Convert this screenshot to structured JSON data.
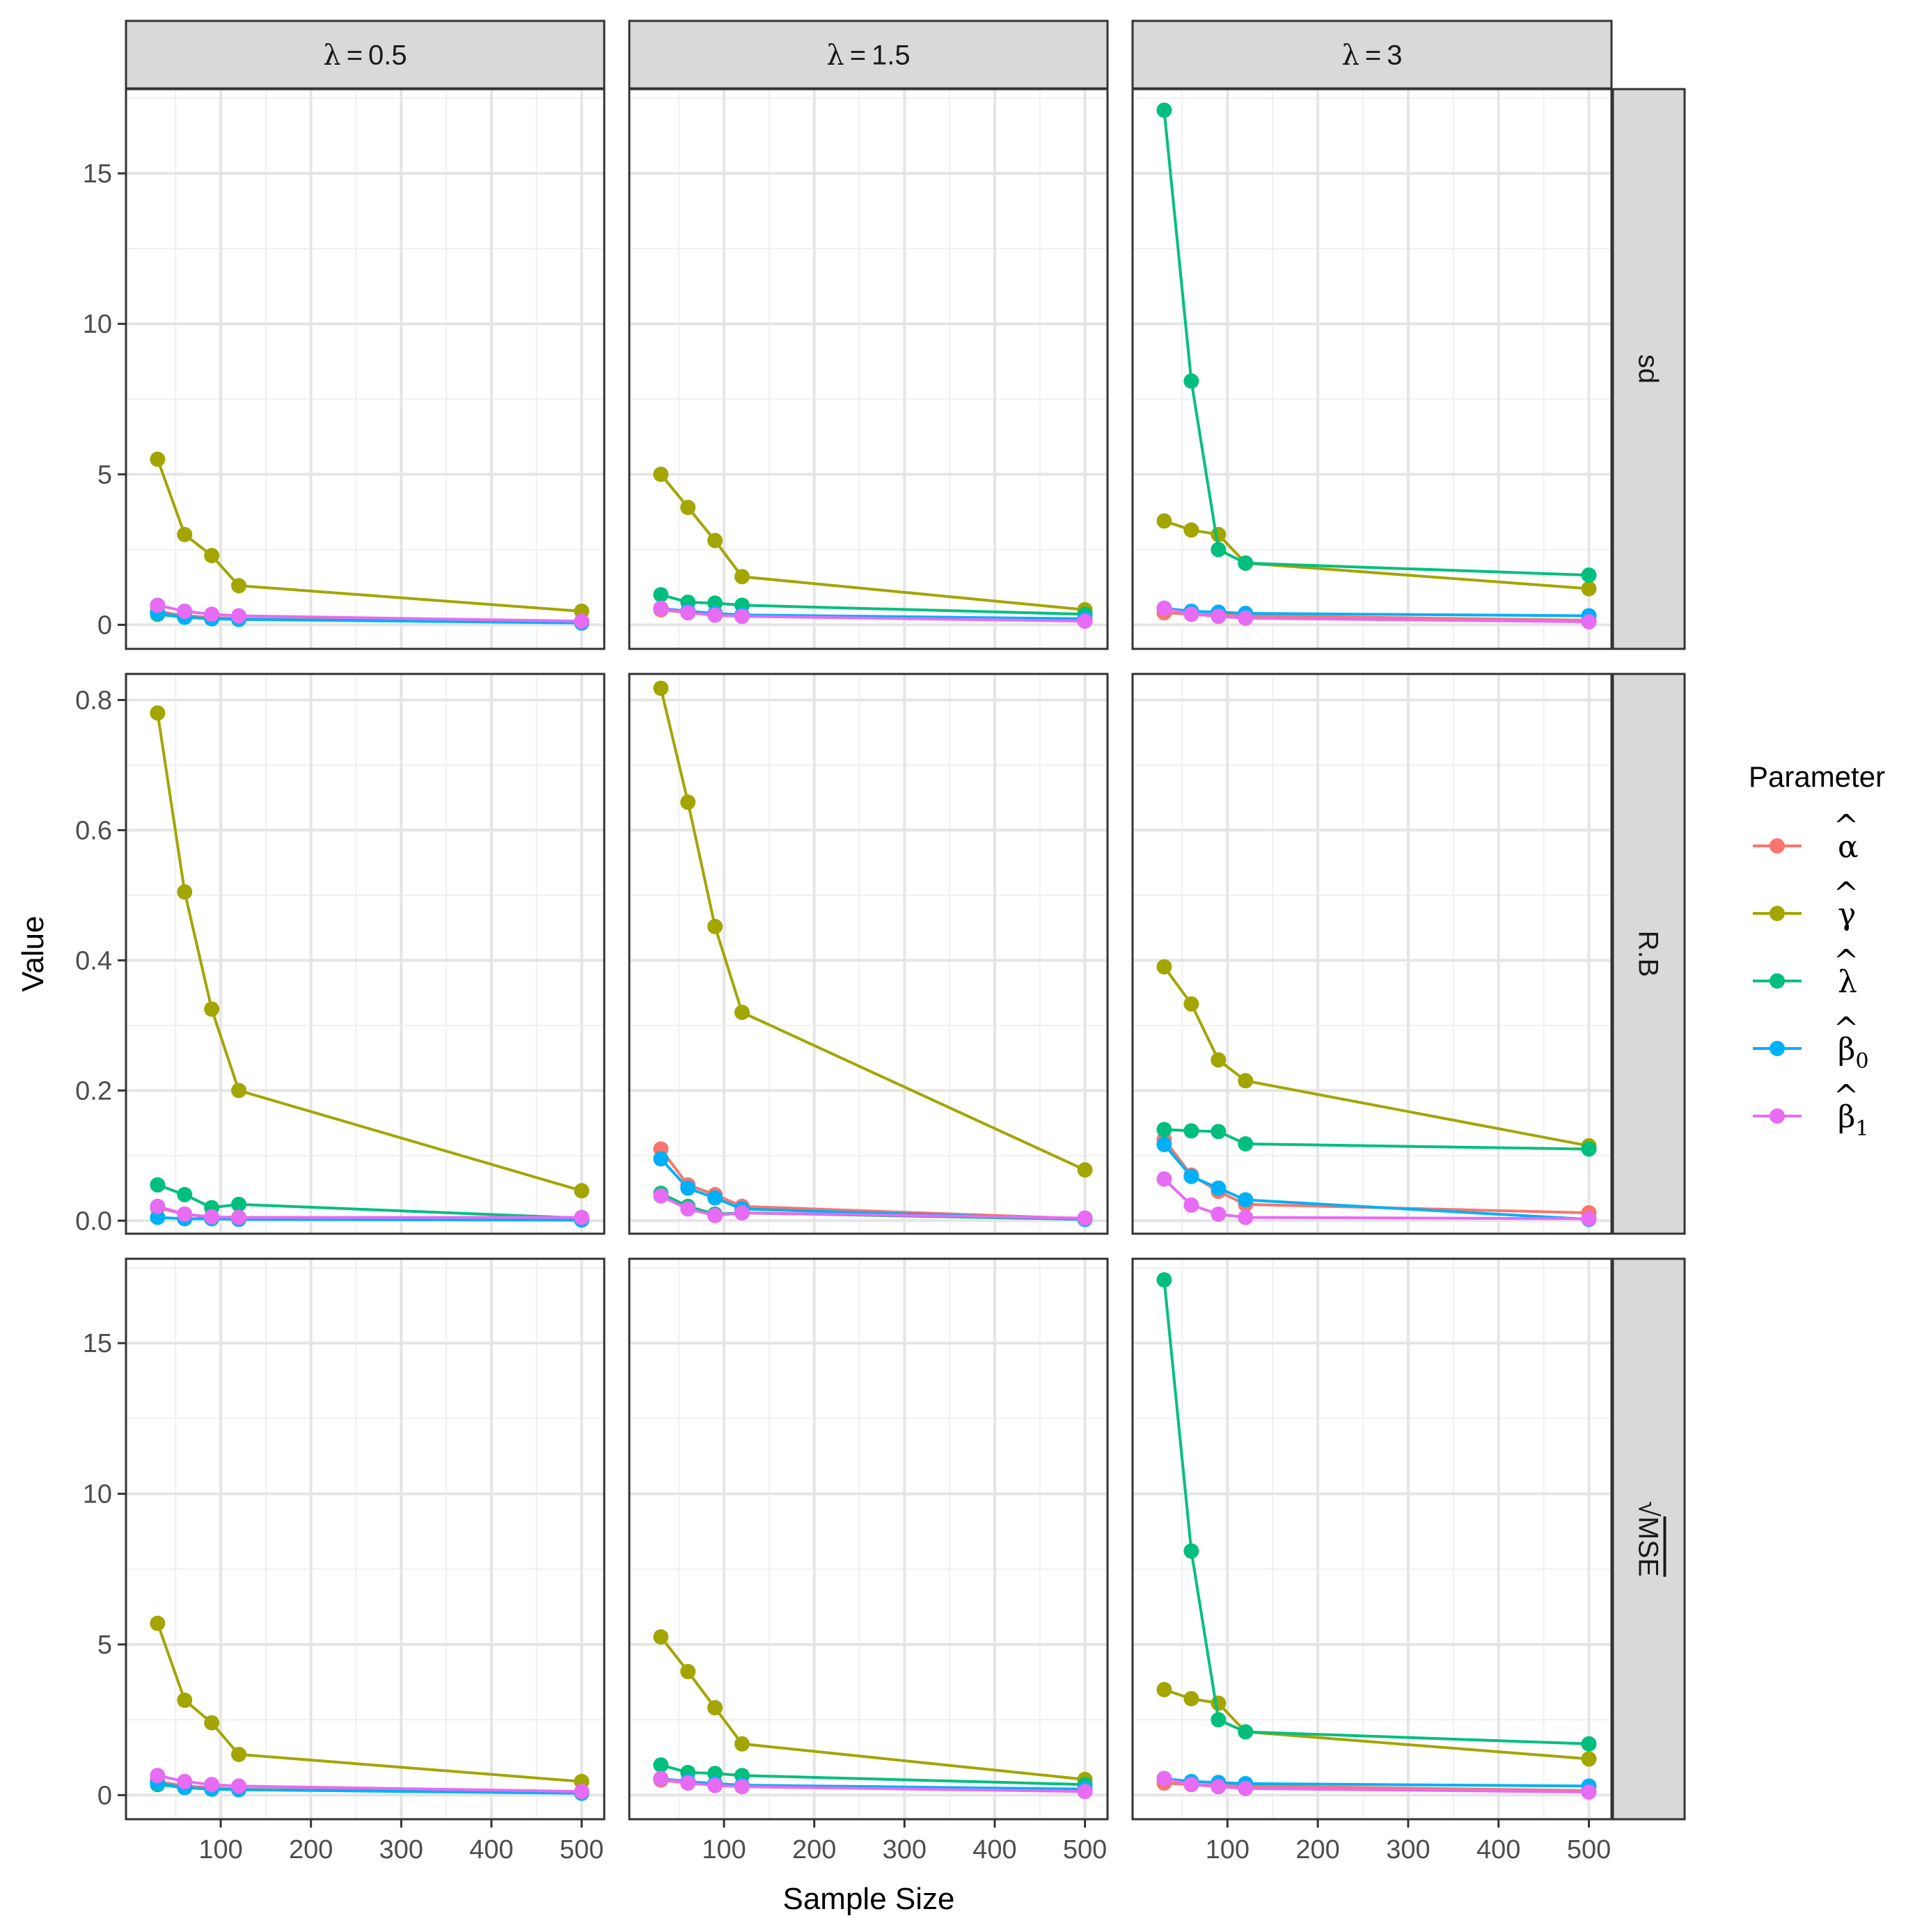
{
  "chart_data": {
    "type": "line",
    "xlabel": "Sample Size",
    "ylabel": "Value",
    "x": [
      30,
      60,
      90,
      120,
      500
    ],
    "xlim": [
      -5,
      525
    ],
    "xticks": [
      100,
      200,
      300,
      400,
      500
    ],
    "columns": [
      {
        "key": "l05",
        "symbol": "λ",
        "eq": "=",
        "value": "0.5"
      },
      {
        "key": "l15",
        "symbol": "λ",
        "eq": "=",
        "value": "1.5"
      },
      {
        "key": "l3",
        "symbol": "λ",
        "eq": "=",
        "value": "3"
      }
    ],
    "rows": [
      {
        "key": "sd",
        "label": "sd",
        "ylim": [
          -0.8,
          17.8
        ],
        "yticks": [
          0,
          5,
          10,
          15
        ],
        "ytick_labels": [
          "0",
          "5",
          "10",
          "15"
        ]
      },
      {
        "key": "rb",
        "label": "R.B",
        "ylim": [
          -0.02,
          0.84
        ],
        "yticks": [
          0,
          0.2,
          0.4,
          0.6,
          0.8
        ],
        "ytick_labels": [
          "0.0",
          "0.2",
          "0.4",
          "0.6",
          "0.8"
        ]
      },
      {
        "key": "mse",
        "label": "MSE",
        "label_prefix": "√",
        "ylim": [
          -0.8,
          17.8
        ],
        "yticks": [
          0,
          5,
          10,
          15
        ],
        "ytick_labels": [
          "0",
          "5",
          "10",
          "15"
        ]
      }
    ],
    "legend": {
      "title": "Parameter",
      "position": "right",
      "entries": [
        {
          "key": "alpha",
          "symbol": "α",
          "hat": "^",
          "sub": "",
          "color": "#F8766D"
        },
        {
          "key": "gamma",
          "symbol": "γ",
          "hat": "^",
          "sub": "",
          "color": "#A3A500"
        },
        {
          "key": "lambda",
          "symbol": "λ",
          "hat": "^",
          "sub": "",
          "color": "#00BF7D"
        },
        {
          "key": "beta0",
          "symbol": "β",
          "hat": "^",
          "sub": "0",
          "color": "#00B0F6"
        },
        {
          "key": "beta1",
          "symbol": "β",
          "hat": "^",
          "sub": "1",
          "color": "#E76BF3"
        }
      ]
    },
    "panels": {
      "sd": {
        "l05": {
          "alpha": [
            0.45,
            0.3,
            0.25,
            0.2,
            0.08
          ],
          "gamma": [
            5.5,
            3.0,
            2.3,
            1.3,
            0.45
          ],
          "lambda": [
            0.35,
            0.25,
            0.2,
            0.18,
            0.08
          ],
          "beta0": [
            0.4,
            0.25,
            0.2,
            0.18,
            0.06
          ],
          "beta1": [
            0.65,
            0.45,
            0.35,
            0.3,
            0.12
          ]
        },
        "l15": {
          "alpha": [
            0.5,
            0.4,
            0.35,
            0.3,
            0.15
          ],
          "gamma": [
            5.0,
            3.9,
            2.8,
            1.6,
            0.5
          ],
          "lambda": [
            1.0,
            0.75,
            0.72,
            0.65,
            0.35
          ],
          "beta0": [
            0.55,
            0.45,
            0.38,
            0.33,
            0.2
          ],
          "beta1": [
            0.55,
            0.4,
            0.32,
            0.28,
            0.12
          ]
        },
        "l3": {
          "alpha": [
            0.4,
            0.35,
            0.32,
            0.3,
            0.15
          ],
          "gamma": [
            3.45,
            3.15,
            3.0,
            2.05,
            1.2
          ],
          "lambda": [
            17.1,
            8.1,
            2.5,
            2.05,
            1.65
          ],
          "beta0": [
            0.55,
            0.45,
            0.42,
            0.38,
            0.3
          ],
          "beta1": [
            0.55,
            0.35,
            0.28,
            0.22,
            0.1
          ]
        }
      },
      "rb": {
        "l05": {
          "alpha": [
            0.02,
            0.01,
            0.005,
            0.005,
            0.003
          ],
          "gamma": [
            0.78,
            0.505,
            0.325,
            0.2,
            0.046
          ],
          "lambda": [
            0.055,
            0.04,
            0.02,
            0.025,
            0.004
          ],
          "beta0": [
            0.005,
            0.003,
            0.003,
            0.002,
            0.001
          ],
          "beta1": [
            0.022,
            0.01,
            0.006,
            0.005,
            0.005
          ]
        },
        "l15": {
          "alpha": [
            0.11,
            0.055,
            0.04,
            0.022,
            0.003
          ],
          "gamma": [
            0.818,
            0.643,
            0.452,
            0.32,
            0.078
          ],
          "lambda": [
            0.042,
            0.022,
            0.01,
            0.012,
            0.002
          ],
          "beta0": [
            0.095,
            0.05,
            0.035,
            0.018,
            0.002
          ],
          "beta1": [
            0.038,
            0.018,
            0.008,
            0.012,
            0.004
          ]
        },
        "l3": {
          "alpha": [
            0.125,
            0.07,
            0.045,
            0.025,
            0.012
          ],
          "gamma": [
            0.39,
            0.333,
            0.247,
            0.215,
            0.115
          ],
          "lambda": [
            0.14,
            0.138,
            0.137,
            0.118,
            0.11
          ],
          "beta0": [
            0.117,
            0.068,
            0.05,
            0.032,
            0.002
          ],
          "beta1": [
            0.064,
            0.024,
            0.01,
            0.005,
            0.003
          ]
        }
      },
      "mse": {
        "l05": {
          "alpha": [
            0.45,
            0.3,
            0.25,
            0.2,
            0.08
          ],
          "gamma": [
            5.7,
            3.15,
            2.4,
            1.35,
            0.45
          ],
          "lambda": [
            0.35,
            0.25,
            0.2,
            0.18,
            0.08
          ],
          "beta0": [
            0.4,
            0.25,
            0.2,
            0.18,
            0.06
          ],
          "beta1": [
            0.65,
            0.45,
            0.35,
            0.3,
            0.12
          ]
        },
        "l15": {
          "alpha": [
            0.5,
            0.4,
            0.35,
            0.3,
            0.15
          ],
          "gamma": [
            5.25,
            4.1,
            2.9,
            1.7,
            0.52
          ],
          "lambda": [
            1.0,
            0.75,
            0.72,
            0.65,
            0.35
          ],
          "beta0": [
            0.55,
            0.45,
            0.38,
            0.33,
            0.2
          ],
          "beta1": [
            0.55,
            0.4,
            0.32,
            0.28,
            0.12
          ]
        },
        "l3": {
          "alpha": [
            0.4,
            0.35,
            0.32,
            0.3,
            0.15
          ],
          "gamma": [
            3.5,
            3.2,
            3.05,
            2.1,
            1.2
          ],
          "lambda": [
            17.1,
            8.1,
            2.5,
            2.1,
            1.7
          ],
          "beta0": [
            0.55,
            0.45,
            0.42,
            0.38,
            0.3
          ],
          "beta1": [
            0.55,
            0.35,
            0.28,
            0.22,
            0.1
          ]
        }
      }
    }
  }
}
